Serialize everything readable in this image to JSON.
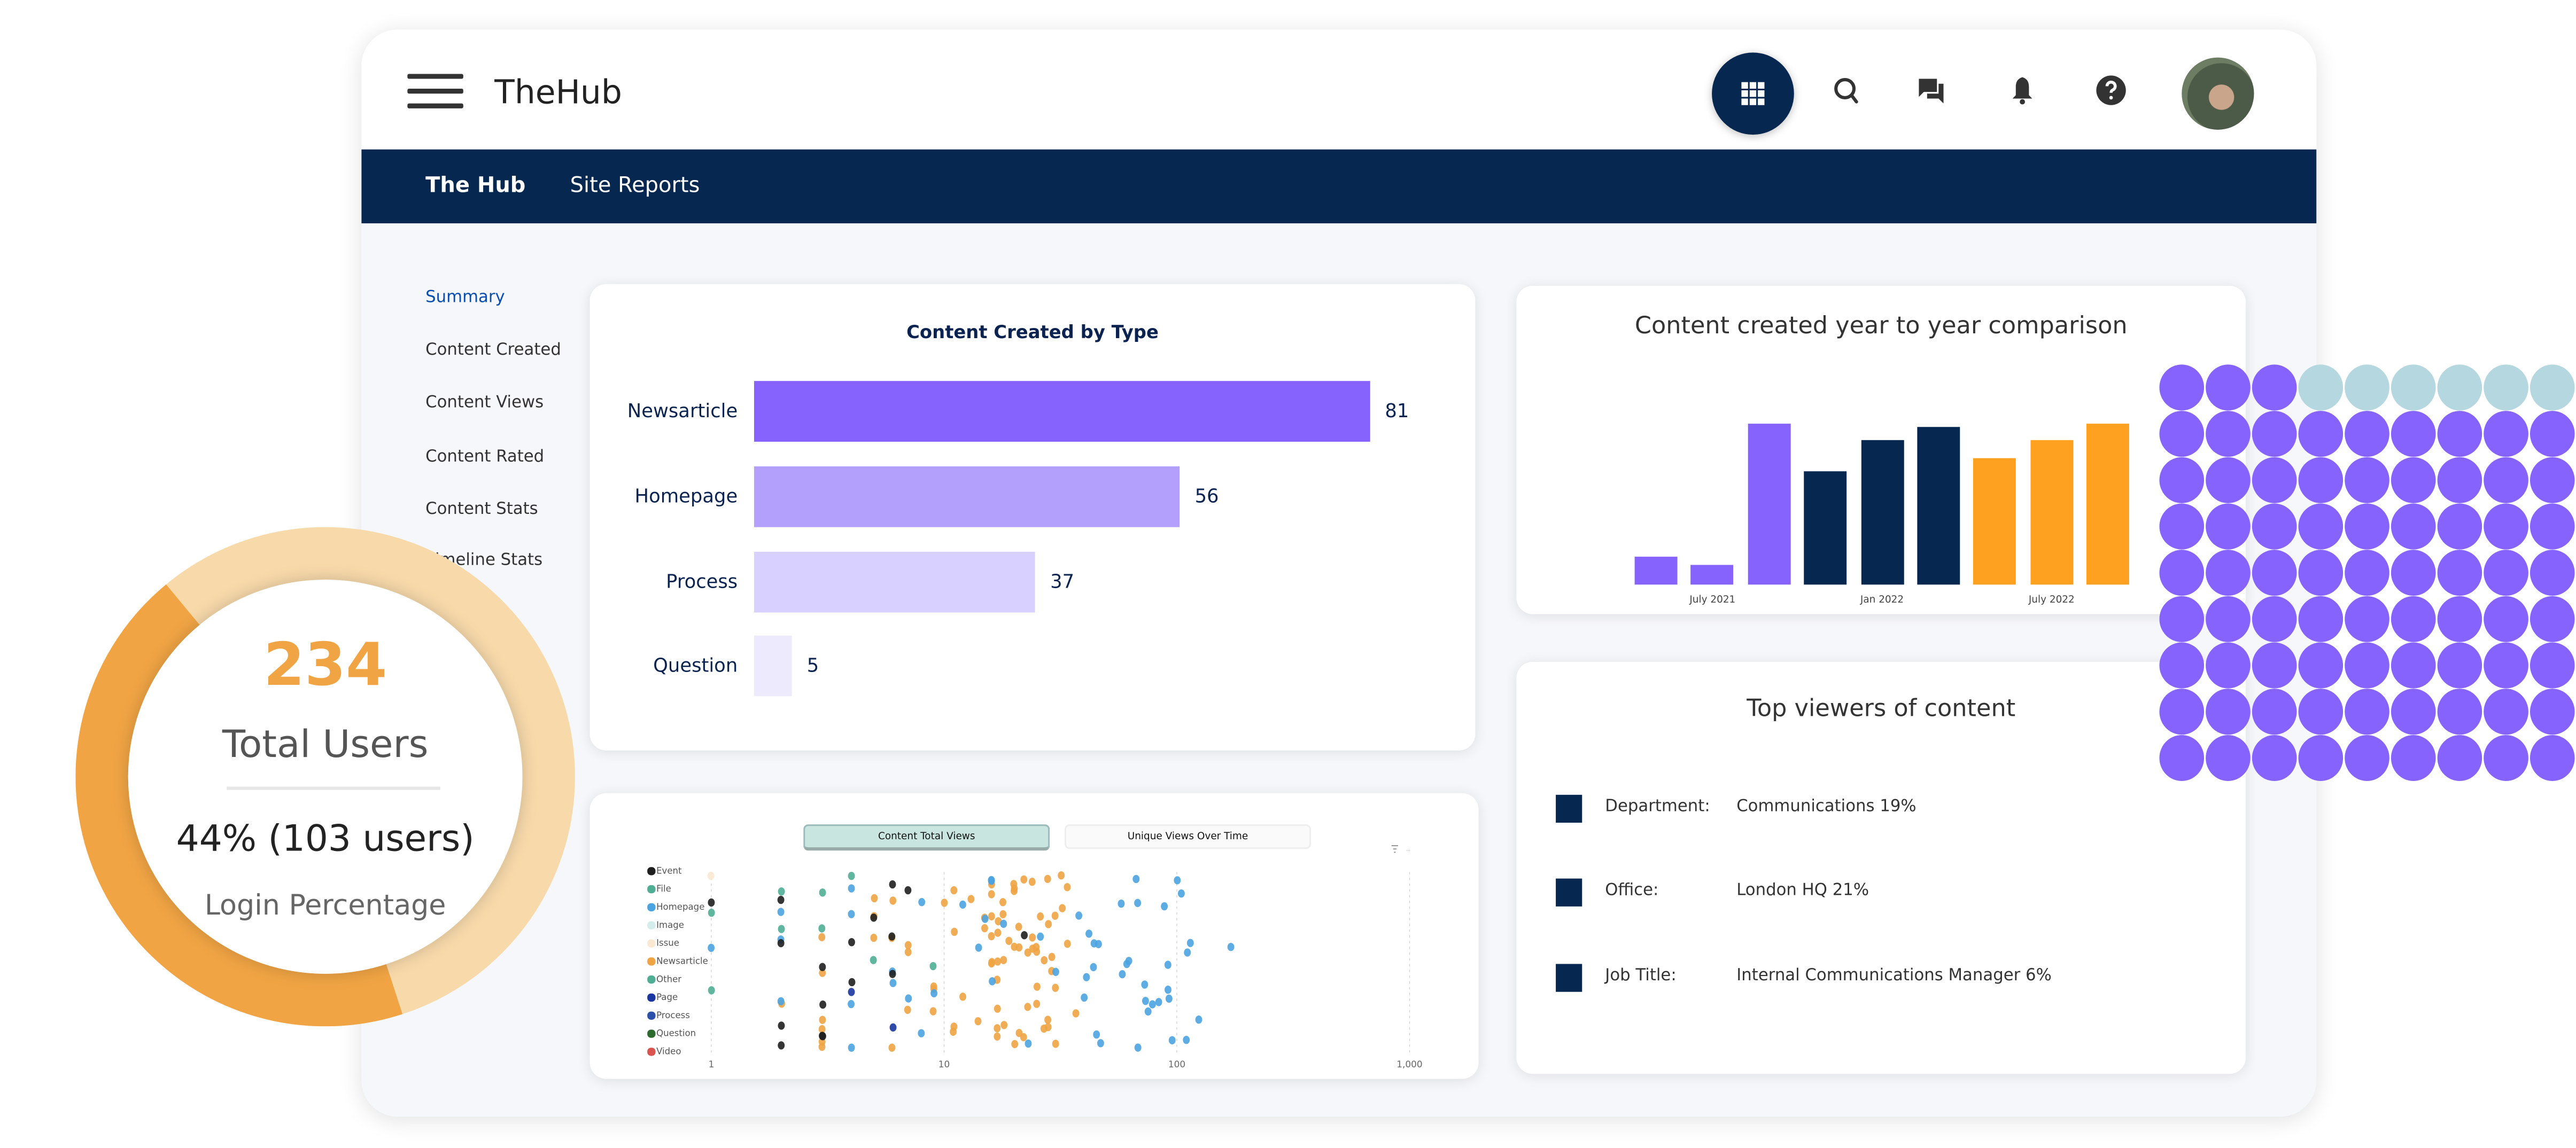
{
  "header": {
    "app_title": "TheHub",
    "icons": [
      "menu-icon",
      "apps-grid-icon",
      "search-icon",
      "chat-icon",
      "bell-icon",
      "help-icon",
      "avatar"
    ]
  },
  "nav": {
    "items": [
      {
        "label": "The Hub",
        "active": true
      },
      {
        "label": "Site Reports",
        "active": false
      }
    ]
  },
  "sidebar": {
    "items": [
      {
        "label": "Summary",
        "active": true
      },
      {
        "label": "Content Created"
      },
      {
        "label": "Content Views"
      },
      {
        "label": "Content Rated"
      },
      {
        "label": "Content Stats"
      },
      {
        "label": "Timeline Stats"
      }
    ]
  },
  "login_widget": {
    "total_users": "234",
    "total_users_label": "Total Users",
    "login_text": "44% (103 users)",
    "login_label": "Login Percentage",
    "login_fraction": 0.44,
    "colors": {
      "filled": "#f0a444",
      "remaining": "#f7d9aa",
      "number": "#f0a444"
    }
  },
  "top_viewers": {
    "title": "Top viewers of content",
    "rows": [
      {
        "key": "Department:",
        "value": "Communications  19%"
      },
      {
        "key": "Office:",
        "value": "London HQ  21%"
      },
      {
        "key": "Job Title:",
        "value": "Internal Communications Manager  6%"
      }
    ]
  },
  "scatter_tabs": {
    "active": "Content Total Views",
    "inactive": "Unique Views Over Time"
  },
  "chart_data": [
    {
      "type": "bar",
      "orientation": "horizontal",
      "title": "Content Created by Type",
      "categories": [
        "Newsarticle",
        "Homepage",
        "Process",
        "Question"
      ],
      "values": [
        81,
        56,
        37,
        5
      ],
      "colors": [
        "#8763fd",
        "#b3a0fd",
        "#d8d0fe",
        "#eeeafe"
      ]
    },
    {
      "type": "bar",
      "title": "Content created year to year comparison",
      "values": [
        14,
        10,
        81,
        57,
        73,
        79,
        64,
        73,
        81
      ],
      "bar_colors": [
        "#8763fd",
        "#8763fd",
        "#8763fd",
        "#062850",
        "#062850",
        "#062850",
        "#fea020",
        "#fea020",
        "#fea020"
      ],
      "x_ticks": [
        {
          "label": "July 2021",
          "bar_index": 1
        },
        {
          "label": "Jan 2022",
          "bar_index": 4
        },
        {
          "label": "July 2022",
          "bar_index": 7
        }
      ],
      "y_axis": "none",
      "grid": false
    },
    {
      "type": "scatter",
      "x_scale": "log",
      "xlim": [
        1,
        1000
      ],
      "x_tick_labels": [
        "1",
        "10",
        "100",
        "1,000"
      ],
      "grid": "vertical dashed",
      "legend_position": "left",
      "legend": [
        {
          "name": "Event",
          "color": "#1f1f1f"
        },
        {
          "name": "File",
          "color": "#4fae94"
        },
        {
          "name": "Homepage",
          "color": "#4ba3e0"
        },
        {
          "name": "Image",
          "color": "#d4ecec"
        },
        {
          "name": "Issue",
          "color": "#fbe8d2"
        },
        {
          "name": "Newsarticle",
          "color": "#f0a444"
        },
        {
          "name": "Other",
          "color": "#4fae94"
        },
        {
          "name": "Page",
          "color": "#1a36a0"
        },
        {
          "name": "Process",
          "color": "#2a50aa"
        },
        {
          "name": "Question",
          "color": "#2d6a2d"
        },
        {
          "name": "Video",
          "color": "#d9534f"
        }
      ],
      "series": [
        {
          "name": "Event",
          "x": [
            6,
            2,
            3,
            3,
            4,
            2,
            3,
            3,
            2,
            7,
            22,
            5,
            6,
            2,
            4,
            6,
            1
          ]
        },
        {
          "name": "File",
          "x": [
            2,
            9,
            1
          ]
        },
        {
          "name": "Homepage",
          "x": [
            9,
            23,
            14,
            40,
            45,
            68,
            124,
            4,
            30,
            44,
            75,
            111,
            73,
            2,
            4,
            8,
            12,
            44,
            67,
            91,
            115,
            92,
            4,
            8,
            46,
            88,
            1,
            58,
            58,
            15,
            61,
            16,
            79,
            6,
            104,
            4,
            16,
            84,
            100,
            18,
            38,
            62,
            73,
            95,
            110,
            170,
            2,
            2,
            47,
            26,
            68,
            6,
            7,
            41,
            93,
            16,
            42
          ]
        },
        {
          "name": "Issue",
          "x": [
            1
          ]
        },
        {
          "name": "Newsarticle",
          "x": [
            3,
            15,
            16,
            17,
            20,
            9,
            20,
            5,
            10,
            18,
            20,
            20,
            23,
            32,
            29,
            28,
            3,
            30,
            17,
            7,
            16,
            17,
            3,
            16,
            7,
            9,
            18,
            20,
            25,
            30,
            11,
            17,
            14,
            25,
            26,
            5,
            17,
            30,
            18,
            25,
            22,
            24,
            34,
            2,
            3,
            6,
            7,
            6,
            28,
            29,
            37,
            17,
            18,
            12,
            11,
            28,
            24,
            28,
            3,
            6,
            16,
            27,
            3,
            21,
            13,
            32,
            11,
            16,
            21,
            23,
            25,
            22,
            9,
            5,
            27,
            34,
            15,
            17,
            19,
            21,
            24,
            11,
            16
          ]
        },
        {
          "name": "Other",
          "x": [
            1,
            2,
            5,
            4,
            3,
            3
          ]
        },
        {
          "name": "Page",
          "x": [
            4,
            6
          ]
        }
      ]
    }
  ]
}
